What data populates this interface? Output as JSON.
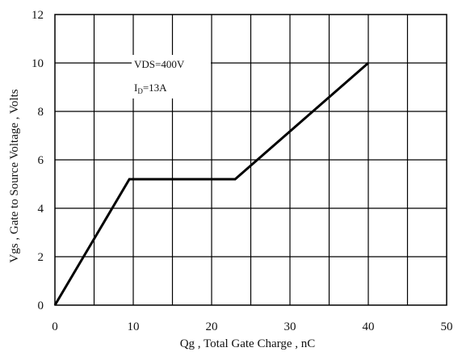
{
  "chart_data": {
    "type": "line",
    "xlabel": "Qg , Total Gate Charge , nC",
    "ylabel": "Vgs , Gate to Source Voltage , Volts",
    "xlim": [
      0,
      50
    ],
    "ylim": [
      0,
      12
    ],
    "xticks": [
      0,
      10,
      20,
      30,
      40,
      50
    ],
    "yticks": [
      0,
      2,
      4,
      6,
      8,
      10,
      12
    ],
    "grid": true,
    "x_grid_step": 5,
    "y_grid_step": 2,
    "series": [
      {
        "color": "#000000",
        "x": [
          0,
          9.5,
          23,
          40
        ],
        "y": [
          0,
          5.2,
          5.2,
          10
        ]
      }
    ],
    "annotations": {
      "line1": "VDS=400V",
      "line2_main": "I",
      "line2_sub": "D",
      "line2_rest": "=13A"
    }
  }
}
